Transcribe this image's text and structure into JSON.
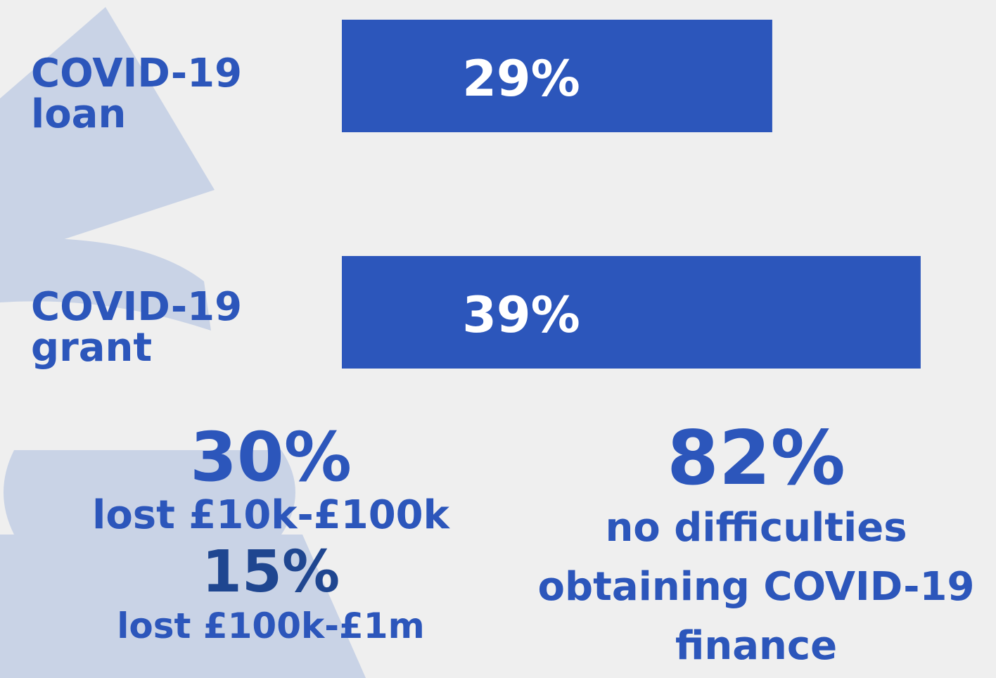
{
  "chart_data": {
    "type": "bar",
    "categories": [
      "COVID-19 loan",
      "COVID-19 grant"
    ],
    "values": [
      29,
      39
    ],
    "value_labels": [
      "29%",
      "39%"
    ],
    "color": "#2c56bb"
  },
  "stats_left": [
    {
      "figure": "30%",
      "label": "lost £10k-£100k"
    },
    {
      "figure": "15%",
      "label": "lost £100k-£1m"
    }
  ],
  "stats_right": {
    "figure": "82%",
    "label": "no difficulties obtaining COVID-19 finance"
  }
}
